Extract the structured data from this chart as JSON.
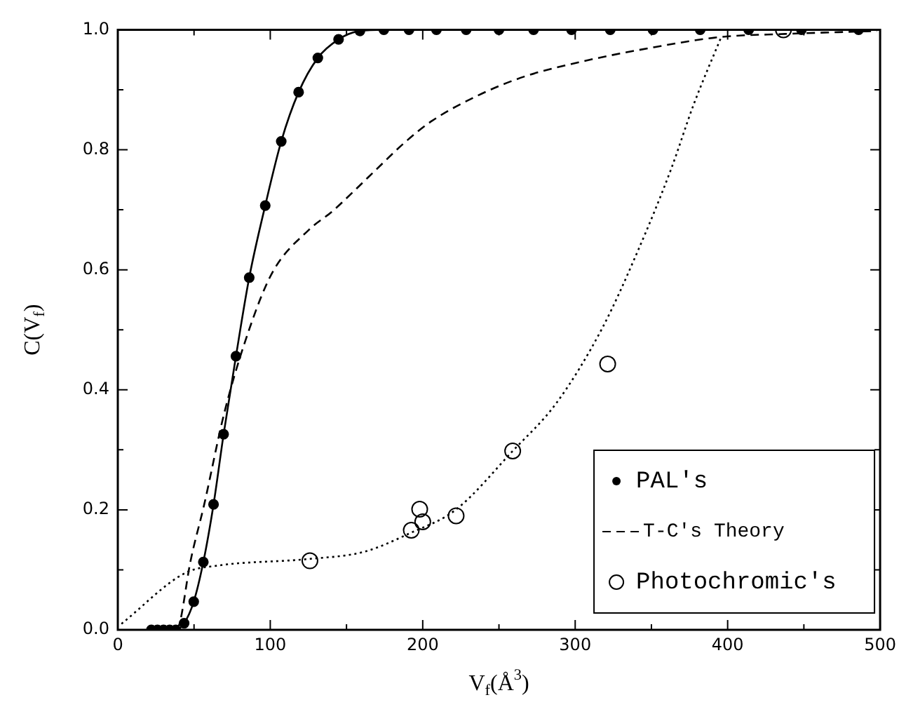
{
  "chart_data": {
    "type": "line",
    "xlabel": "V$_{f}$(Å$^{3}$)",
    "ylabel": "C(V$_{f}$)",
    "xlim": [
      0,
      500
    ],
    "ylim": [
      0,
      1.0
    ],
    "xticks": [
      0,
      {
        "value": 50,
        "label": null
      },
      100,
      {
        "value": 150,
        "label": null
      },
      200,
      {
        "value": 250,
        "label": null
      },
      300,
      {
        "value": 350,
        "label": null
      },
      400,
      {
        "value": 450,
        "label": null
      },
      500
    ],
    "yticks": [
      "0.0",
      {
        "value": 0.1,
        "label": null
      },
      0.2,
      {
        "value": 0.3,
        "label": null
      },
      0.4,
      {
        "value": 0.5,
        "label": null
      },
      0.6,
      {
        "value": 0.7,
        "label": null
      },
      0.8,
      {
        "value": 0.9,
        "label": null
      },
      "1.0"
    ],
    "legend": "bottom right",
    "grid": false,
    "series": [
      {
        "name": "PAL's",
        "type": "line",
        "color": "#000000",
        "marker": "circle",
        "line_style": "solid",
        "x": [
          22,
          26,
          30,
          34,
          38,
          43.5,
          49.8,
          56.1,
          62.8,
          69.4,
          77.5,
          86.2,
          96.7,
          107.2,
          118.6,
          131.2,
          144.8,
          158.8,
          174.5,
          191,
          209,
          228.5,
          250,
          272.7,
          297.6,
          323,
          351,
          382,
          413.8,
          448.4,
          485.9
        ],
        "values": [
          0,
          0,
          0,
          0,
          0,
          0.011,
          0.047,
          0.113,
          0.209,
          0.326,
          0.456,
          0.587,
          0.707,
          0.814,
          0.896,
          0.953,
          0.984,
          0.998,
          1.0,
          1.0,
          1.0,
          1.0,
          1.0,
          1.0,
          1.0,
          1.0,
          1.0,
          1.0,
          1.0,
          1.0,
          1.0
        ]
      },
      {
        "name": "T-C's Theory",
        "type": "line",
        "color": "#000000",
        "marker": "none",
        "line_style": "dashed",
        "x": [
          38,
          40.5,
          47.5,
          56.5,
          70,
          86.5,
          101.5,
          125.5,
          140.5,
          164.6,
          188.6,
          206,
          236.7,
          266.7,
          302.7,
          347.7,
          395.8,
          437.8,
          497.9
        ],
        "values": [
          0,
          0.01,
          0.112,
          0.207,
          0.363,
          0.503,
          0.596,
          0.667,
          0.697,
          0.755,
          0.813,
          0.848,
          0.891,
          0.922,
          0.946,
          0.969,
          0.988,
          0.993,
          0.998
        ]
      },
      {
        "name": "Photochromic's",
        "type": "scatter",
        "color": "#000000",
        "marker": "circle",
        "x": [
          126,
          192.5,
          198,
          200,
          221.9,
          259,
          321.3,
          436.6
        ],
        "values": [
          0.115,
          0.166,
          0.201,
          0.18,
          0.19,
          0.298,
          0.443,
          1.0
        ]
      },
      {
        "type": "line",
        "color": "#000000",
        "marker": "none",
        "line_style": "dotted",
        "x": [
          2.4,
          44.4,
          65.5,
          125,
          161.5,
          191.6,
          221.6,
          259,
          287.7,
          317.8,
          341.7,
          362.8,
          377.8,
          395.8
        ],
        "values": [
          0.01,
          0.095,
          0.107,
          0.118,
          0.13,
          0.161,
          0.2,
          0.298,
          0.378,
          0.503,
          0.635,
          0.767,
          0.876,
          0.988
        ]
      }
    ]
  }
}
